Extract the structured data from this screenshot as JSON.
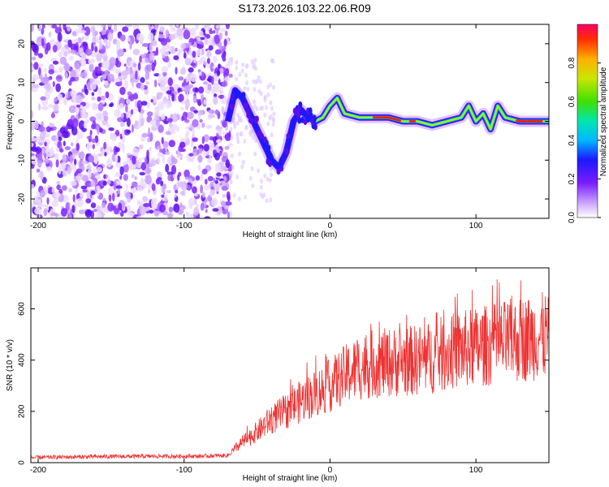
{
  "title": "S173.2026.103.22.06.R09",
  "chart_data": [
    {
      "type": "heatmap",
      "xlabel": "Height of straight line (km)",
      "ylabel": "Frequency (Hz)",
      "xlim": [
        -205,
        150
      ],
      "ylim": [
        -25,
        25
      ],
      "xticks": [
        -200,
        -100,
        0,
        100
      ],
      "yticks": [
        -20,
        -10,
        0,
        10,
        20
      ],
      "colorbar": {
        "label": "Normalized spectral amplitude",
        "range": [
          0.0,
          1.0
        ],
        "ticks": [
          "0.0",
          "0.2",
          "0.4",
          "0.6",
          "0.8"
        ]
      },
      "ridge": {
        "x": [
          -70,
          -65,
          -60,
          -55,
          -50,
          -45,
          -40,
          -35,
          -30,
          -25,
          -20,
          -15,
          -10,
          -5,
          0,
          5,
          10,
          20,
          30,
          40,
          50,
          60,
          70,
          80,
          90,
          95,
          100,
          105,
          110,
          115,
          120,
          130,
          140,
          150
        ],
        "freq": [
          0,
          8,
          6,
          2,
          -2,
          -6,
          -10,
          -12,
          -8,
          0,
          3,
          1,
          0,
          1,
          4,
          6,
          2,
          1,
          1,
          1,
          0,
          0,
          -1,
          0,
          1,
          4,
          0,
          2,
          -2,
          4,
          1,
          0,
          0,
          0
        ]
      }
    },
    {
      "type": "line",
      "xlabel": "Height of straight line (km)",
      "ylabel": "SNR (10 * v/v)",
      "xlim": [
        -205,
        150
      ],
      "ylim": [
        0,
        760
      ],
      "xticks": [
        -200,
        -100,
        0,
        100
      ],
      "yticks": [
        0,
        200,
        400,
        600
      ],
      "series": [
        {
          "color": "#ee3333",
          "x": [
            -205,
            -180,
            -150,
            -120,
            -90,
            -70,
            -60,
            -50,
            -40,
            -30,
            -20,
            -10,
            0,
            10,
            20,
            30,
            40,
            50,
            60,
            70,
            80,
            90,
            100,
            110,
            120,
            130,
            140,
            150
          ],
          "y": [
            20,
            22,
            24,
            25,
            25,
            28,
            80,
            120,
            170,
            200,
            240,
            270,
            300,
            340,
            370,
            385,
            390,
            395,
            400,
            410,
            430,
            440,
            450,
            460,
            470,
            480,
            490,
            495
          ]
        }
      ]
    }
  ]
}
